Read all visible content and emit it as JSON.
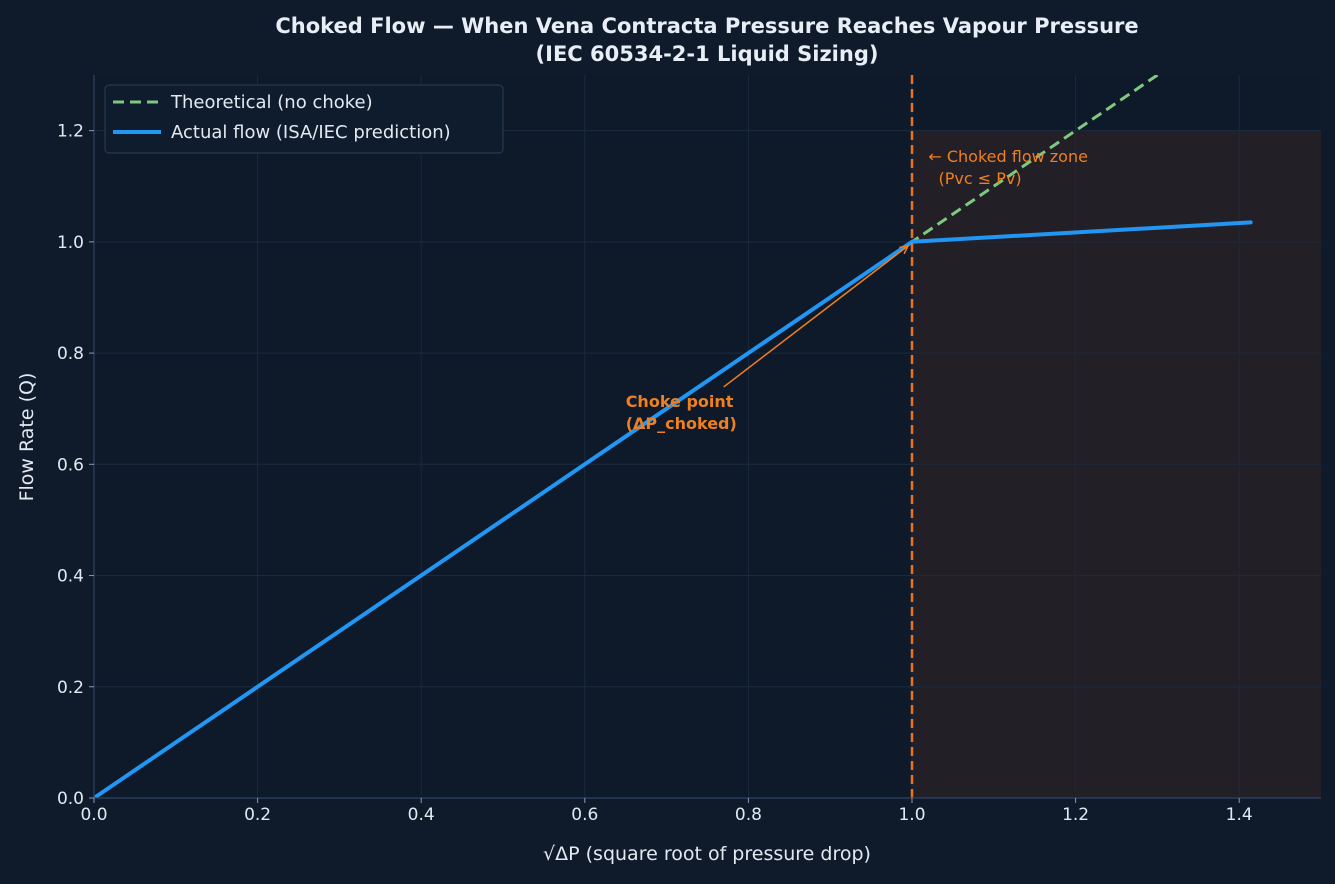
{
  "chart_data": {
    "type": "line",
    "title": "Choked Flow — When Vena Contracta Pressure Reaches Vapour Pressure",
    "subtitle": "(IEC 60534-2-1 Liquid Sizing)",
    "xlabel": "√ΔP  (square root of pressure drop)",
    "ylabel": "Flow Rate (Q)",
    "xlim": [
      0,
      1.5
    ],
    "ylim": [
      0,
      1.3
    ],
    "xticks": [
      0.0,
      0.2,
      0.4,
      0.6,
      0.8,
      1.0,
      1.2,
      1.4
    ],
    "xtick_labels": [
      "0.0",
      "0.2",
      "0.4",
      "0.6",
      "0.8",
      "1.0",
      "1.2",
      "1.4"
    ],
    "yticks": [
      0.0,
      0.2,
      0.4,
      0.6,
      0.8,
      1.0,
      1.2
    ],
    "ytick_labels": [
      "0.0",
      "0.2",
      "0.4",
      "0.6",
      "0.8",
      "1.0",
      "1.2"
    ],
    "grid": true,
    "legend_position": "top-left",
    "series": [
      {
        "name": "Theoretical (no choke)",
        "style": "dashed",
        "color": "#7fc97f",
        "x": [
          0,
          1.414
        ],
        "y": [
          0,
          1.414
        ]
      },
      {
        "name": "Actual flow (ISA/IEC prediction)",
        "style": "solid",
        "color": "#2196f3",
        "x": [
          0,
          1.0,
          1.414
        ],
        "y": [
          0,
          1.0,
          1.035
        ]
      }
    ],
    "choke_line": {
      "x": 1.0,
      "color": "#e8731a"
    },
    "choked_zone": {
      "x_from": 1.0,
      "x_to": 1.5,
      "y_from": 0,
      "y_to": 1.2,
      "color": "#221f27"
    },
    "annotations": [
      {
        "id": "choke-point",
        "lines": [
          "Choke point",
          "(ΔP_choked)"
        ],
        "x": 0.65,
        "y": 0.66,
        "arrow_to": [
          1.0,
          1.0
        ],
        "bold": true
      },
      {
        "id": "choked-zone",
        "lines": [
          "← Choked flow zone",
          "  (Pvc ≤ Pv)"
        ],
        "x": 1.02,
        "y": 1.1,
        "bold": false
      }
    ]
  }
}
